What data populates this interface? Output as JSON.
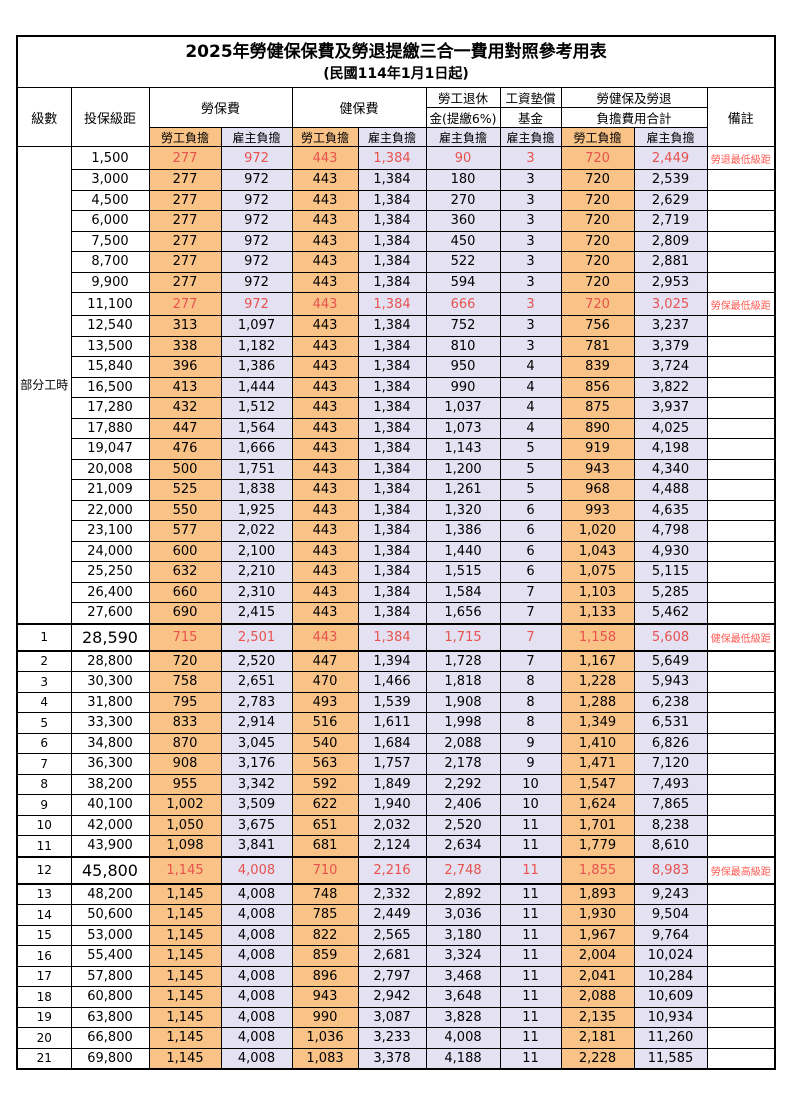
{
  "title": "2025年勞健保保費及勞退提繳三合一費用對照參考用表",
  "subtitle": "(民國114年1月1日起)",
  "header": {
    "level": "級數",
    "bracket": "投保級距",
    "labor_fee": "勞保費",
    "health_fee": "健保費",
    "pension_line1": "勞工退休",
    "pension_line2": "金(提繳6%)",
    "wage_line1": "工資墊償",
    "wage_line2": "基金",
    "total_line1": "勞健保及勞退",
    "total_line2": "負擔費用合計",
    "note": "備註",
    "employee": "勞工負擔",
    "employer": "雇主負擔"
  },
  "group_label": "部分工時",
  "colors": {
    "employee_bg": "#f9c287",
    "employer_bg": "#e3e1f2",
    "red_number": "#e8524e",
    "red_note": "#ff5a52"
  },
  "rows": [
    {
      "level": "",
      "bracket": "1,500",
      "cells": [
        "277",
        "972",
        "443",
        "1,384",
        "90",
        "3",
        "720",
        "2,449"
      ],
      "note": "勞退最低級距",
      "red": true,
      "big": false
    },
    {
      "level": "",
      "bracket": "3,000",
      "cells": [
        "277",
        "972",
        "443",
        "1,384",
        "180",
        "3",
        "720",
        "2,539"
      ],
      "note": "",
      "red": false,
      "big": false
    },
    {
      "level": "",
      "bracket": "4,500",
      "cells": [
        "277",
        "972",
        "443",
        "1,384",
        "270",
        "3",
        "720",
        "2,629"
      ],
      "note": "",
      "red": false,
      "big": false
    },
    {
      "level": "",
      "bracket": "6,000",
      "cells": [
        "277",
        "972",
        "443",
        "1,384",
        "360",
        "3",
        "720",
        "2,719"
      ],
      "note": "",
      "red": false,
      "big": false
    },
    {
      "level": "",
      "bracket": "7,500",
      "cells": [
        "277",
        "972",
        "443",
        "1,384",
        "450",
        "3",
        "720",
        "2,809"
      ],
      "note": "",
      "red": false,
      "big": false
    },
    {
      "level": "",
      "bracket": "8,700",
      "cells": [
        "277",
        "972",
        "443",
        "1,384",
        "522",
        "3",
        "720",
        "2,881"
      ],
      "note": "",
      "red": false,
      "big": false
    },
    {
      "level": "",
      "bracket": "9,900",
      "cells": [
        "277",
        "972",
        "443",
        "1,384",
        "594",
        "3",
        "720",
        "2,953"
      ],
      "note": "",
      "red": false,
      "big": false
    },
    {
      "level": "",
      "bracket": "11,100",
      "cells": [
        "277",
        "972",
        "443",
        "1,384",
        "666",
        "3",
        "720",
        "3,025"
      ],
      "note": "勞保最低級距",
      "red": true,
      "big": false
    },
    {
      "level": "",
      "bracket": "12,540",
      "cells": [
        "313",
        "1,097",
        "443",
        "1,384",
        "752",
        "3",
        "756",
        "3,237"
      ],
      "note": "",
      "red": false,
      "big": false
    },
    {
      "level": "",
      "bracket": "13,500",
      "cells": [
        "338",
        "1,182",
        "443",
        "1,384",
        "810",
        "3",
        "781",
        "3,379"
      ],
      "note": "",
      "red": false,
      "big": false
    },
    {
      "level": "",
      "bracket": "15,840",
      "cells": [
        "396",
        "1,386",
        "443",
        "1,384",
        "950",
        "4",
        "839",
        "3,724"
      ],
      "note": "",
      "red": false,
      "big": false
    },
    {
      "level": "",
      "bracket": "16,500",
      "cells": [
        "413",
        "1,444",
        "443",
        "1,384",
        "990",
        "4",
        "856",
        "3,822"
      ],
      "note": "",
      "red": false,
      "big": false
    },
    {
      "level": "",
      "bracket": "17,280",
      "cells": [
        "432",
        "1,512",
        "443",
        "1,384",
        "1,037",
        "4",
        "875",
        "3,937"
      ],
      "note": "",
      "red": false,
      "big": false
    },
    {
      "level": "",
      "bracket": "17,880",
      "cells": [
        "447",
        "1,564",
        "443",
        "1,384",
        "1,073",
        "4",
        "890",
        "4,025"
      ],
      "note": "",
      "red": false,
      "big": false
    },
    {
      "level": "",
      "bracket": "19,047",
      "cells": [
        "476",
        "1,666",
        "443",
        "1,384",
        "1,143",
        "5",
        "919",
        "4,198"
      ],
      "note": "",
      "red": false,
      "big": false
    },
    {
      "level": "",
      "bracket": "20,008",
      "cells": [
        "500",
        "1,751",
        "443",
        "1,384",
        "1,200",
        "5",
        "943",
        "4,340"
      ],
      "note": "",
      "red": false,
      "big": false
    },
    {
      "level": "",
      "bracket": "21,009",
      "cells": [
        "525",
        "1,838",
        "443",
        "1,384",
        "1,261",
        "5",
        "968",
        "4,488"
      ],
      "note": "",
      "red": false,
      "big": false
    },
    {
      "level": "",
      "bracket": "22,000",
      "cells": [
        "550",
        "1,925",
        "443",
        "1,384",
        "1,320",
        "6",
        "993",
        "4,635"
      ],
      "note": "",
      "red": false,
      "big": false
    },
    {
      "level": "",
      "bracket": "23,100",
      "cells": [
        "577",
        "2,022",
        "443",
        "1,384",
        "1,386",
        "6",
        "1,020",
        "4,798"
      ],
      "note": "",
      "red": false,
      "big": false
    },
    {
      "level": "",
      "bracket": "24,000",
      "cells": [
        "600",
        "2,100",
        "443",
        "1,384",
        "1,440",
        "6",
        "1,043",
        "4,930"
      ],
      "note": "",
      "red": false,
      "big": false
    },
    {
      "level": "",
      "bracket": "25,250",
      "cells": [
        "632",
        "2,210",
        "443",
        "1,384",
        "1,515",
        "6",
        "1,075",
        "5,115"
      ],
      "note": "",
      "red": false,
      "big": false
    },
    {
      "level": "",
      "bracket": "26,400",
      "cells": [
        "660",
        "2,310",
        "443",
        "1,384",
        "1,584",
        "7",
        "1,103",
        "5,285"
      ],
      "note": "",
      "red": false,
      "big": false
    },
    {
      "level": "",
      "bracket": "27,600",
      "cells": [
        "690",
        "2,415",
        "443",
        "1,384",
        "1,656",
        "7",
        "1,133",
        "5,462"
      ],
      "note": "",
      "red": false,
      "big": false
    },
    {
      "level": "1",
      "bracket": "28,590",
      "cells": [
        "715",
        "2,501",
        "443",
        "1,384",
        "1,715",
        "7",
        "1,158",
        "5,608"
      ],
      "note": "健保最低級距",
      "red": true,
      "big": true
    },
    {
      "level": "2",
      "bracket": "28,800",
      "cells": [
        "720",
        "2,520",
        "447",
        "1,394",
        "1,728",
        "7",
        "1,167",
        "5,649"
      ],
      "note": "",
      "red": false,
      "big": false
    },
    {
      "level": "3",
      "bracket": "30,300",
      "cells": [
        "758",
        "2,651",
        "470",
        "1,466",
        "1,818",
        "8",
        "1,228",
        "5,943"
      ],
      "note": "",
      "red": false,
      "big": false
    },
    {
      "level": "4",
      "bracket": "31,800",
      "cells": [
        "795",
        "2,783",
        "493",
        "1,539",
        "1,908",
        "8",
        "1,288",
        "6,238"
      ],
      "note": "",
      "red": false,
      "big": false
    },
    {
      "level": "5",
      "bracket": "33,300",
      "cells": [
        "833",
        "2,914",
        "516",
        "1,611",
        "1,998",
        "8",
        "1,349",
        "6,531"
      ],
      "note": "",
      "red": false,
      "big": false
    },
    {
      "level": "6",
      "bracket": "34,800",
      "cells": [
        "870",
        "3,045",
        "540",
        "1,684",
        "2,088",
        "9",
        "1,410",
        "6,826"
      ],
      "note": "",
      "red": false,
      "big": false
    },
    {
      "level": "7",
      "bracket": "36,300",
      "cells": [
        "908",
        "3,176",
        "563",
        "1,757",
        "2,178",
        "9",
        "1,471",
        "7,120"
      ],
      "note": "",
      "red": false,
      "big": false
    },
    {
      "level": "8",
      "bracket": "38,200",
      "cells": [
        "955",
        "3,342",
        "592",
        "1,849",
        "2,292",
        "10",
        "1,547",
        "7,493"
      ],
      "note": "",
      "red": false,
      "big": false
    },
    {
      "level": "9",
      "bracket": "40,100",
      "cells": [
        "1,002",
        "3,509",
        "622",
        "1,940",
        "2,406",
        "10",
        "1,624",
        "7,865"
      ],
      "note": "",
      "red": false,
      "big": false
    },
    {
      "level": "10",
      "bracket": "42,000",
      "cells": [
        "1,050",
        "3,675",
        "651",
        "2,032",
        "2,520",
        "11",
        "1,701",
        "8,238"
      ],
      "note": "",
      "red": false,
      "big": false
    },
    {
      "level": "11",
      "bracket": "43,900",
      "cells": [
        "1,098",
        "3,841",
        "681",
        "2,124",
        "2,634",
        "11",
        "1,779",
        "8,610"
      ],
      "note": "",
      "red": false,
      "big": false
    },
    {
      "level": "12",
      "bracket": "45,800",
      "cells": [
        "1,145",
        "4,008",
        "710",
        "2,216",
        "2,748",
        "11",
        "1,855",
        "8,983"
      ],
      "note": "勞保最高級距",
      "red": true,
      "big": true
    },
    {
      "level": "13",
      "bracket": "48,200",
      "cells": [
        "1,145",
        "4,008",
        "748",
        "2,332",
        "2,892",
        "11",
        "1,893",
        "9,243"
      ],
      "note": "",
      "red": false,
      "big": false
    },
    {
      "level": "14",
      "bracket": "50,600",
      "cells": [
        "1,145",
        "4,008",
        "785",
        "2,449",
        "3,036",
        "11",
        "1,930",
        "9,504"
      ],
      "note": "",
      "red": false,
      "big": false
    },
    {
      "level": "15",
      "bracket": "53,000",
      "cells": [
        "1,145",
        "4,008",
        "822",
        "2,565",
        "3,180",
        "11",
        "1,967",
        "9,764"
      ],
      "note": "",
      "red": false,
      "big": false
    },
    {
      "level": "16",
      "bracket": "55,400",
      "cells": [
        "1,145",
        "4,008",
        "859",
        "2,681",
        "3,324",
        "11",
        "2,004",
        "10,024"
      ],
      "note": "",
      "red": false,
      "big": false
    },
    {
      "level": "17",
      "bracket": "57,800",
      "cells": [
        "1,145",
        "4,008",
        "896",
        "2,797",
        "3,468",
        "11",
        "2,041",
        "10,284"
      ],
      "note": "",
      "red": false,
      "big": false
    },
    {
      "level": "18",
      "bracket": "60,800",
      "cells": [
        "1,145",
        "4,008",
        "943",
        "2,942",
        "3,648",
        "11",
        "2,088",
        "10,609"
      ],
      "note": "",
      "red": false,
      "big": false
    },
    {
      "level": "19",
      "bracket": "63,800",
      "cells": [
        "1,145",
        "4,008",
        "990",
        "3,087",
        "3,828",
        "11",
        "2,135",
        "10,934"
      ],
      "note": "",
      "red": false,
      "big": false
    },
    {
      "level": "20",
      "bracket": "66,800",
      "cells": [
        "1,145",
        "4,008",
        "1,036",
        "3,233",
        "4,008",
        "11",
        "2,181",
        "11,260"
      ],
      "note": "",
      "red": false,
      "big": false
    },
    {
      "level": "21",
      "bracket": "69,800",
      "cells": [
        "1,145",
        "4,008",
        "1,083",
        "3,378",
        "4,188",
        "11",
        "2,228",
        "11,585"
      ],
      "note": "",
      "red": false,
      "big": false
    }
  ]
}
